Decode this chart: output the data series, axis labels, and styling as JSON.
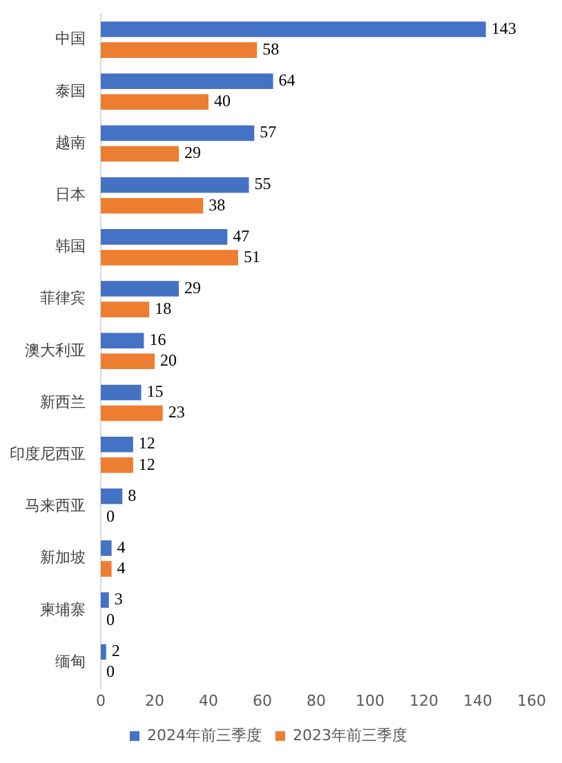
{
  "chart_data": {
    "type": "bar",
    "orientation": "horizontal",
    "categories": [
      "中国",
      "泰国",
      "越南",
      "日本",
      "韩国",
      "菲律宾",
      "澳大利亚",
      "新西兰",
      "印度尼西亚",
      "马来西亚",
      "新加坡",
      "柬埔寨",
      "缅甸"
    ],
    "series": [
      {
        "name": "2024年前三季度",
        "color": "#4472c4",
        "values": [
          143,
          64,
          57,
          55,
          47,
          29,
          16,
          15,
          12,
          8,
          4,
          3,
          2
        ]
      },
      {
        "name": "2023年前三季度",
        "color": "#ed7d31",
        "values": [
          58,
          40,
          29,
          38,
          51,
          18,
          20,
          23,
          12,
          0,
          4,
          0,
          0
        ]
      }
    ],
    "xlim": [
      0,
      160
    ],
    "xticks": [
      0,
      20,
      40,
      60,
      80,
      100,
      120,
      140,
      160
    ],
    "grid": false,
    "legend": "bottom",
    "data_labels": true
  }
}
